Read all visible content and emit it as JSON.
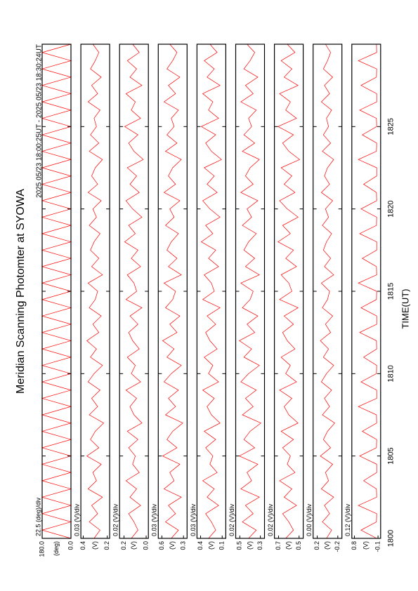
{
  "chart_data": {
    "type": "line",
    "title": "Meridian Scanning Photomter at SYOWA",
    "subtitle": "2025 05/23 18:00:25UT - 2025 05/23 18:30:24UT",
    "xlabel": "TIME(UT)",
    "xlim": [
      1800,
      1830
    ],
    "xticks": [
      1800,
      1805,
      1810,
      1815,
      1820,
      1825
    ],
    "x": [
      1800,
      1800.5,
      1801,
      1801.5,
      1802,
      1802.5,
      1803,
      1803.5,
      1804,
      1804.5,
      1805,
      1805.5,
      1806,
      1806.5,
      1807,
      1807.5,
      1808,
      1808.5,
      1809,
      1809.5,
      1810,
      1810.5,
      1811,
      1811.5,
      1812,
      1812.5,
      1813,
      1813.5,
      1814,
      1814.5,
      1815,
      1815.5,
      1816,
      1816.5,
      1817,
      1817.5,
      1818,
      1818.5,
      1819,
      1819.5,
      1820,
      1820.5,
      1821,
      1821.5,
      1822,
      1822.5,
      1823,
      1823.5,
      1824,
      1824.5,
      1825,
      1825.5,
      1826,
      1826.5,
      1827,
      1827.5,
      1828,
      1828.5,
      1829,
      1829.5,
      1830
    ],
    "series": [
      {
        "name": "22.5 (deg)/div",
        "unit": "(deg)",
        "color": "#ff0000",
        "ylim": [
          0,
          180
        ],
        "yticks": [
          {
            "value": 180,
            "label": "180.0"
          },
          {
            "value": 0,
            "label": "0.0"
          }
        ],
        "values": [
          0,
          180,
          0,
          180,
          0,
          180,
          0,
          180,
          0,
          180,
          0,
          180,
          0,
          180,
          0,
          180,
          0,
          180,
          0,
          180,
          0,
          180,
          0,
          180,
          0,
          180,
          0,
          180,
          0,
          180,
          0,
          180,
          0,
          180,
          0,
          180,
          0,
          180,
          0,
          180,
          0,
          180,
          0,
          180,
          0,
          180,
          0,
          180,
          0,
          180,
          0,
          180,
          0,
          180,
          0,
          180,
          0,
          180,
          0,
          180,
          0
        ]
      },
      {
        "name": "0.03 (V)/div",
        "unit": "(V)",
        "color": "#ff0000",
        "ylim": [
          0.18,
          0.42
        ],
        "yticks": [
          0.4,
          0.2
        ],
        "values": [
          0.31,
          0.26,
          0.35,
          0.28,
          0.33,
          0.24,
          0.36,
          0.29,
          0.32,
          0.25,
          0.37,
          0.27,
          0.34,
          0.3,
          0.23,
          0.35,
          0.28,
          0.33,
          0.26,
          0.36,
          0.31,
          0.24,
          0.34,
          0.29,
          0.37,
          0.27,
          0.32,
          0.25,
          0.35,
          0.3,
          0.28,
          0.36,
          0.24,
          0.33,
          0.27,
          0.34,
          0.31,
          0.26,
          0.35,
          0.29,
          0.32,
          0.25,
          0.36,
          0.28,
          0.33,
          0.3,
          0.24,
          0.35,
          0.27,
          0.34,
          0.29,
          0.31,
          0.26,
          0.36,
          0.28,
          0.33,
          0.25,
          0.34,
          0.3,
          0.27,
          0.32
        ]
      },
      {
        "name": "0.02 (V)/div",
        "unit": "(V)",
        "color": "#ff0000",
        "ylim": [
          -0.02,
          0.24
        ],
        "yticks": [
          0.2,
          {
            "value": 0,
            "label": "0.0"
          }
        ],
        "values": [
          0.134,
          0.074,
          0.11,
          0.158,
          0.05,
          0.146,
          0.086,
          0.182,
          0.062,
          0.122,
          0.098,
          0.158,
          0.074,
          0.17,
          0.038,
          0.11,
          0.146,
          0.086,
          0.182,
          0.05,
          0.134,
          0.098,
          0.17,
          0.062,
          0.122,
          0.158,
          0.074,
          0.146,
          0.038,
          0.182,
          0.086,
          0.11,
          0.17,
          0.05,
          0.134,
          0.074,
          0.194,
          0.098,
          0.158,
          0.038,
          0.122,
          0.182,
          0.062,
          0.146,
          0.086,
          0.17,
          0.026,
          0.11,
          0.158,
          0.074,
          0.194,
          0.05,
          0.134,
          0.098,
          0.182,
          0.038,
          0.146,
          0.086,
          0.17,
          0.062,
          0.122
        ]
      },
      {
        "name": "0.03 (V)/div",
        "unit": "(V)",
        "color": "#ff0000",
        "ylim": [
          0.25,
          0.65
        ],
        "yticks": [
          0.6,
          0.3
        ],
        "values": [
          0.47,
          0.37,
          0.55,
          0.41,
          0.51,
          0.33,
          0.57,
          0.43,
          0.49,
          0.35,
          0.59,
          0.39,
          0.53,
          0.45,
          0.31,
          0.55,
          0.41,
          0.51,
          0.37,
          0.57,
          0.47,
          0.33,
          0.53,
          0.43,
          0.59,
          0.39,
          0.49,
          0.35,
          0.55,
          0.45,
          0.41,
          0.57,
          0.33,
          0.51,
          0.39,
          0.53,
          0.47,
          0.37,
          0.55,
          0.43,
          0.49,
          0.35,
          0.57,
          0.41,
          0.51,
          0.45,
          0.33,
          0.55,
          0.39,
          0.53,
          0.43,
          0.47,
          0.37,
          0.57,
          0.41,
          0.51,
          0.35,
          0.53,
          0.45,
          0.39,
          0.49
        ]
      },
      {
        "name": "0.03 (V)/div",
        "unit": "(V)",
        "color": "#ff0000",
        "ylim": [
          0.05,
          0.45
        ],
        "yticks": [
          0.4,
          0.1
        ],
        "values": [
          0.29,
          0.19,
          0.25,
          0.33,
          0.15,
          0.31,
          0.21,
          0.37,
          0.17,
          0.27,
          0.23,
          0.33,
          0.19,
          0.35,
          0.13,
          0.25,
          0.31,
          0.21,
          0.37,
          0.15,
          0.29,
          0.23,
          0.35,
          0.17,
          0.27,
          0.33,
          0.19,
          0.31,
          0.13,
          0.37,
          0.21,
          0.25,
          0.35,
          0.15,
          0.29,
          0.19,
          0.39,
          0.23,
          0.33,
          0.13,
          0.27,
          0.37,
          0.17,
          0.31,
          0.21,
          0.35,
          0.11,
          0.25,
          0.33,
          0.19,
          0.39,
          0.15,
          0.29,
          0.23,
          0.37,
          0.13,
          0.31,
          0.21,
          0.35,
          0.17,
          0.27
        ]
      },
      {
        "name": "0.02 (V)/div",
        "unit": "(V)",
        "color": "#ff0000",
        "ylim": [
          0.26,
          0.54
        ],
        "yticks": [
          0.5,
          0.3
        ],
        "values": [
          0.415,
          0.34,
          0.475,
          0.37,
          0.445,
          0.31,
          0.49,
          0.385,
          0.43,
          0.325,
          0.505,
          0.355,
          0.46,
          0.4,
          0.295,
          0.475,
          0.37,
          0.445,
          0.34,
          0.49,
          0.415,
          0.31,
          0.46,
          0.385,
          0.505,
          0.355,
          0.43,
          0.325,
          0.475,
          0.4,
          0.37,
          0.49,
          0.31,
          0.445,
          0.355,
          0.46,
          0.415,
          0.34,
          0.475,
          0.385,
          0.43,
          0.325,
          0.49,
          0.37,
          0.445,
          0.4,
          0.31,
          0.475,
          0.355,
          0.46,
          0.385,
          0.415,
          0.34,
          0.49,
          0.37,
          0.445,
          0.325,
          0.46,
          0.4,
          0.355,
          0.43
        ]
      },
      {
        "name": "0.02 (V)/div",
        "unit": "(V)",
        "color": "#ff0000",
        "ylim": [
          0.46,
          0.74
        ],
        "yticks": [
          0.7,
          0.5
        ],
        "values": [
          0.63,
          0.555,
          0.6,
          0.66,
          0.525,
          0.645,
          0.57,
          0.69,
          0.54,
          0.615,
          0.585,
          0.66,
          0.555,
          0.675,
          0.51,
          0.6,
          0.645,
          0.57,
          0.69,
          0.525,
          0.63,
          0.585,
          0.675,
          0.54,
          0.615,
          0.66,
          0.555,
          0.645,
          0.51,
          0.69,
          0.57,
          0.6,
          0.675,
          0.525,
          0.63,
          0.555,
          0.705,
          0.585,
          0.66,
          0.51,
          0.615,
          0.69,
          0.54,
          0.645,
          0.57,
          0.675,
          0.495,
          0.6,
          0.66,
          0.555,
          0.705,
          0.525,
          0.63,
          0.585,
          0.69,
          0.51,
          0.645,
          0.57,
          0.675,
          0.54,
          0.615
        ]
      },
      {
        "name": "0.00 (V)/div",
        "unit": "(V)",
        "color": "#ff0000",
        "ylim": [
          -0.28,
          0.28
        ],
        "yticks": [
          0.2,
          -0.2
        ],
        "values": [
          0.02,
          -0.08,
          0.1,
          -0.04,
          0.06,
          -0.12,
          0.12,
          -0.02,
          0.04,
          -0.1,
          0.14,
          -0.06,
          0.08,
          0,
          -0.14,
          0.1,
          -0.04,
          0.06,
          -0.08,
          0.12,
          0.02,
          -0.12,
          0.08,
          -0.02,
          0.14,
          -0.06,
          0.04,
          -0.1,
          0.1,
          0,
          -0.04,
          0.12,
          -0.12,
          0.06,
          -0.06,
          0.08,
          0.02,
          -0.08,
          0.1,
          -0.02,
          0.04,
          -0.1,
          0.12,
          -0.04,
          0.06,
          0,
          -0.12,
          0.1,
          -0.06,
          0.08,
          -0.02,
          0.02,
          -0.08,
          0.12,
          -0.04,
          0.06,
          -0.1,
          0.08,
          0,
          -0.06,
          0.04
        ]
      },
      {
        "name": "0.12 (V)/div",
        "unit": "(V)",
        "color": "#ff0000",
        "ylim": [
          -0.2,
          0.9
        ],
        "yticks": [
          0.8,
          -0.1
        ],
        "values": [
          -0.05,
          0.55,
          -0.04,
          -0.05,
          0.65,
          -0.05,
          -0.04,
          0.45,
          -0.05,
          -0.05,
          0.6,
          -0.04,
          -0.05,
          0.5,
          -0.05,
          -0.04,
          0.65,
          -0.05,
          -0.05,
          0.55,
          -0.04,
          -0.05,
          0.45,
          -0.05,
          -0.04,
          0.6,
          -0.05,
          -0.05,
          0.55,
          -0.04,
          -0.05,
          0.65,
          -0.05,
          -0.04,
          0.5,
          -0.05,
          -0.05,
          0.6,
          -0.04,
          -0.05,
          0.55,
          -0.05,
          -0.04,
          0.45,
          -0.05,
          -0.05,
          0.65,
          -0.04,
          -0.05,
          0.5,
          -0.05,
          -0.04,
          0.6,
          -0.05,
          -0.05,
          0.55,
          -0.04,
          -0.05,
          0.65,
          -0.05,
          -0.04
        ]
      }
    ]
  }
}
